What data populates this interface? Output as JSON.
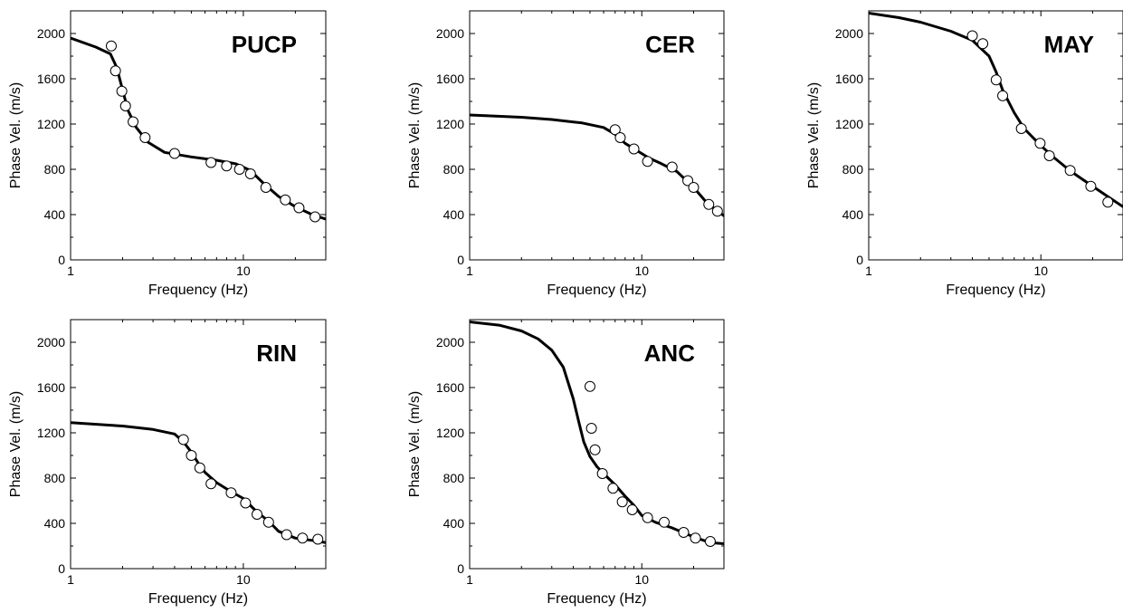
{
  "chart_data": [
    {
      "type": "scatter",
      "title": "PUCP",
      "xlabel": "Frequency (Hz)",
      "ylabel": "Phase Vel. (m/s)",
      "xscale": "log",
      "xlim": [
        1,
        30
      ],
      "ylim": [
        0,
        2200
      ],
      "xticks": [
        1,
        10
      ],
      "yticks": [
        0,
        400,
        800,
        1200,
        1600,
        2000
      ],
      "observed": {
        "x": [
          1.72,
          1.82,
          1.98,
          2.08,
          2.3,
          2.7,
          4.0,
          6.5,
          8.0,
          9.5,
          11.0,
          13.5,
          17.5,
          21.0,
          26.0
        ],
        "y": [
          1890,
          1670,
          1490,
          1360,
          1220,
          1080,
          940,
          860,
          830,
          800,
          760,
          640,
          530,
          460,
          380
        ]
      },
      "model": {
        "x": [
          1.0,
          1.4,
          1.7,
          1.85,
          2.0,
          2.15,
          2.4,
          2.8,
          3.5,
          5.0,
          7.0,
          9.0,
          11.0,
          13.0,
          16.0,
          20.0,
          25.0,
          30.0
        ],
        "y": [
          1960,
          1880,
          1820,
          1700,
          1500,
          1320,
          1170,
          1040,
          950,
          910,
          880,
          850,
          790,
          680,
          560,
          470,
          400,
          360
        ]
      }
    },
    {
      "type": "scatter",
      "title": "CER",
      "xlabel": "Frequency (Hz)",
      "ylabel": "Phase Vel. (m/s)",
      "xscale": "log",
      "xlim": [
        1,
        30
      ],
      "ylim": [
        0,
        2200
      ],
      "xticks": [
        1,
        10
      ],
      "yticks": [
        0,
        400,
        800,
        1200,
        1600,
        2000
      ],
      "observed": {
        "x": [
          7.0,
          7.5,
          9.0,
          10.8,
          15.0,
          18.5,
          20.0,
          24.5,
          27.5
        ],
        "y": [
          1150,
          1080,
          980,
          870,
          820,
          700,
          640,
          490,
          430
        ]
      },
      "model": {
        "x": [
          1.0,
          2.0,
          3.0,
          4.5,
          6.0,
          7.0,
          8.0,
          9.5,
          11.0,
          13.0,
          16.0,
          20.0,
          24.0,
          30.0
        ],
        "y": [
          1280,
          1260,
          1240,
          1210,
          1170,
          1110,
          1030,
          960,
          900,
          850,
          780,
          640,
          500,
          390
        ]
      }
    },
    {
      "type": "scatter",
      "title": "MAY",
      "xlabel": "Frequency (Hz)",
      "ylabel": "Phase Vel. (m/s)",
      "xscale": "log",
      "xlim": [
        1,
        30
      ],
      "ylim": [
        0,
        2200
      ],
      "xticks": [
        1,
        10
      ],
      "yticks": [
        0,
        400,
        800,
        1200,
        1600,
        2000
      ],
      "observed": {
        "x": [
          4.0,
          4.6,
          5.5,
          6.0,
          7.7,
          9.9,
          11.2,
          14.8,
          19.5,
          24.5
        ],
        "y": [
          1980,
          1910,
          1590,
          1450,
          1160,
          1030,
          920,
          790,
          650,
          510
        ]
      },
      "model": {
        "x": [
          1.0,
          1.5,
          2.0,
          3.0,
          4.0,
          5.0,
          5.5,
          6.0,
          7.0,
          8.0,
          10.0,
          12.0,
          15.0,
          20.0,
          25.0,
          30.0
        ],
        "y": [
          2180,
          2140,
          2100,
          2020,
          1940,
          1800,
          1660,
          1500,
          1300,
          1160,
          1010,
          900,
          780,
          650,
          550,
          470
        ]
      }
    },
    {
      "type": "scatter",
      "title": "RIN",
      "xlabel": "Frequency (Hz)",
      "ylabel": "Phase Vel. (m/s)",
      "xscale": "log",
      "xlim": [
        1,
        30
      ],
      "ylim": [
        0,
        2200
      ],
      "xticks": [
        1,
        10
      ],
      "yticks": [
        0,
        400,
        800,
        1200,
        1600,
        2000
      ],
      "observed": {
        "x": [
          4.5,
          5.0,
          5.6,
          6.5,
          8.5,
          10.3,
          12.0,
          14.0,
          17.8,
          22.0,
          27.0
        ],
        "y": [
          1140,
          1000,
          890,
          750,
          670,
          580,
          480,
          410,
          300,
          270,
          260
        ]
      },
      "model": {
        "x": [
          1.0,
          2.0,
          3.0,
          4.0,
          4.5,
          5.0,
          5.5,
          6.0,
          7.0,
          8.5,
          10.0,
          12.0,
          14.0,
          16.0,
          20.0,
          25.0,
          30.0
        ],
        "y": [
          1290,
          1260,
          1230,
          1190,
          1120,
          1030,
          930,
          850,
          760,
          680,
          620,
          500,
          420,
          330,
          270,
          250,
          230
        ]
      }
    },
    {
      "type": "scatter",
      "title": "ANC",
      "xlabel": "Frequency (Hz)",
      "ylabel": "Phase Vel. (m/s)",
      "xscale": "log",
      "xlim": [
        1,
        30
      ],
      "ylim": [
        0,
        2200
      ],
      "xticks": [
        1,
        10
      ],
      "yticks": [
        0,
        400,
        800,
        1200,
        1600,
        2000
      ],
      "observed": {
        "x": [
          5.0,
          5.1,
          5.35,
          5.9,
          6.8,
          7.7,
          8.8,
          10.8,
          13.5,
          17.5,
          20.5,
          25.0
        ],
        "y": [
          1610,
          1240,
          1050,
          840,
          710,
          590,
          520,
          450,
          410,
          320,
          270,
          240
        ]
      },
      "model": {
        "x": [
          1.0,
          1.5,
          2.0,
          2.5,
          3.0,
          3.5,
          4.0,
          4.3,
          4.6,
          5.0,
          5.5,
          6.0,
          7.0,
          8.0,
          9.0,
          10.0,
          12.0,
          15.0,
          20.0,
          25.0,
          30.0
        ],
        "y": [
          2180,
          2150,
          2100,
          2030,
          1930,
          1780,
          1500,
          1300,
          1120,
          990,
          900,
          840,
          740,
          640,
          560,
          470,
          410,
          360,
          280,
          230,
          220
        ]
      }
    }
  ]
}
